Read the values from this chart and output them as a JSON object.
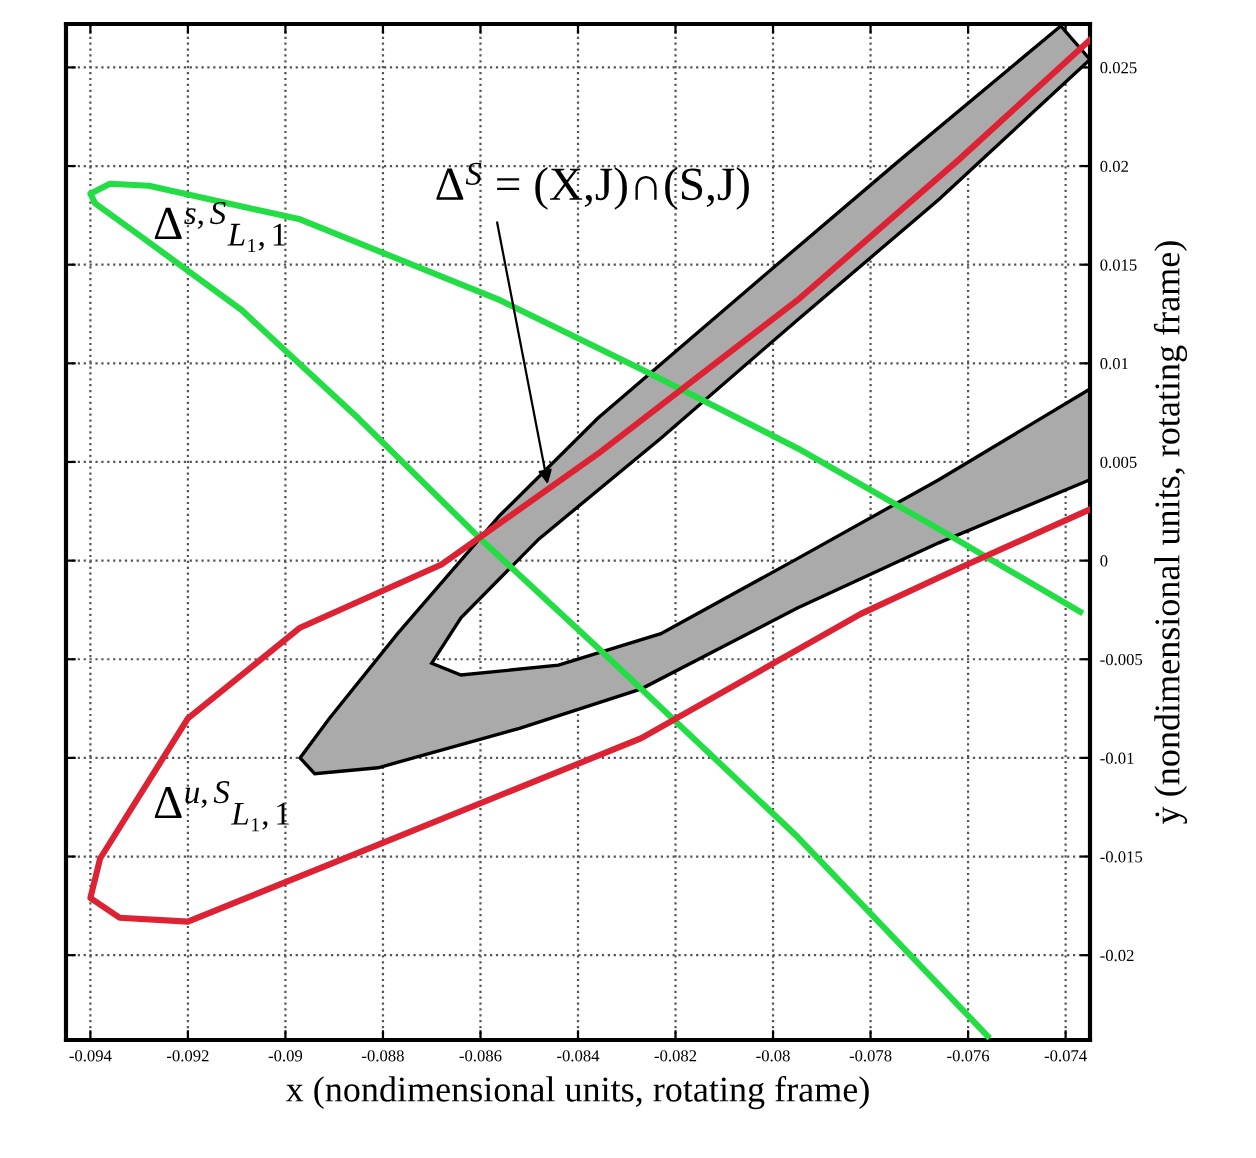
{
  "chart_data": {
    "type": "line",
    "xlabel": "x (nondimensional units, rotating frame)",
    "ylabel": "ẏ (nondimensional units, rotating frame)",
    "xlim": [
      -0.0945,
      -0.0735
    ],
    "ylim": [
      -0.0243,
      0.0272
    ],
    "xticks": [
      -0.094,
      -0.092,
      -0.09,
      -0.088,
      -0.086,
      -0.084,
      -0.082,
      -0.08,
      -0.078,
      -0.076,
      -0.074
    ],
    "yticks": [
      -0.02,
      -0.015,
      -0.01,
      -0.005,
      0,
      0.005,
      0.01,
      0.015,
      0.02,
      0.025
    ],
    "grid": true,
    "series": [
      {
        "type": "area",
        "color": "#aaaaaa",
        "x": [
          -0.0741,
          -0.0774,
          -0.0803,
          -0.0836,
          -0.0856,
          -0.0877,
          -0.0891,
          -0.0897,
          -0.0894,
          -0.0881,
          -0.0852,
          -0.0827,
          -0.0795,
          -0.0766,
          -0.0735,
          -0.0735,
          -0.0766,
          -0.0795,
          -0.0823,
          -0.0844,
          -0.0864,
          -0.087,
          -0.0864,
          -0.0848,
          -0.0823,
          -0.0795,
          -0.0766,
          -0.0735
        ],
        "values": [
          0.0271,
          0.0203,
          0.0142,
          0.0072,
          0.0023,
          -0.0037,
          -0.008,
          -0.01,
          -0.0108,
          -0.0105,
          -0.0085,
          -0.0065,
          -0.0024,
          0.0009,
          0.0041,
          0.0087,
          0.0041,
          0.0001,
          -0.0037,
          -0.0053,
          -0.0058,
          -0.0052,
          -0.0029,
          0.0011,
          0.0062,
          0.0122,
          0.0183,
          0.0254
        ]
      },
      {
        "color": "#22dd44",
        "x": [
          -0.0756,
          -0.0795,
          -0.0836,
          -0.086,
          -0.0885,
          -0.0909,
          -0.093,
          -0.0939,
          -0.094,
          -0.0936,
          -0.0928,
          -0.0897,
          -0.0856,
          -0.0827,
          -0.0795,
          -0.0766,
          -0.0737
        ],
        "values": [
          -0.0241,
          -0.014,
          -0.0044,
          0.0011,
          0.0072,
          0.0127,
          0.0165,
          0.0181,
          0.0186,
          0.0191,
          0.019,
          0.0173,
          0.0132,
          0.0097,
          0.0057,
          0.0016,
          -0.0026
        ]
      },
      {
        "color": "#dd2233",
        "x": [
          -0.0735,
          -0.0762,
          -0.0782,
          -0.0827,
          -0.0877,
          -0.092,
          -0.0934,
          -0.094,
          -0.0938,
          -0.092,
          -0.0897,
          -0.0868,
          -0.0836,
          -0.0795,
          -0.0762,
          -0.0735
        ],
        "values": [
          0.0026,
          -0.0004,
          -0.0027,
          -0.009,
          -0.014,
          -0.0183,
          -0.0181,
          -0.0171,
          -0.0151,
          -0.008,
          -0.0034,
          -0.0002,
          0.0054,
          0.0132,
          0.0203,
          0.0264
        ]
      }
    ],
    "annotations": [
      "Δ$^{s,S}$$_{L₁,1}$",
      "Δ$^{u,S}$$_{L₁,1}$",
      {
        "text": "Δ$^{S}$ = (X,J)∩(S,J)",
        "x": -0.0846,
        "y": 0.0036
      }
    ]
  }
}
